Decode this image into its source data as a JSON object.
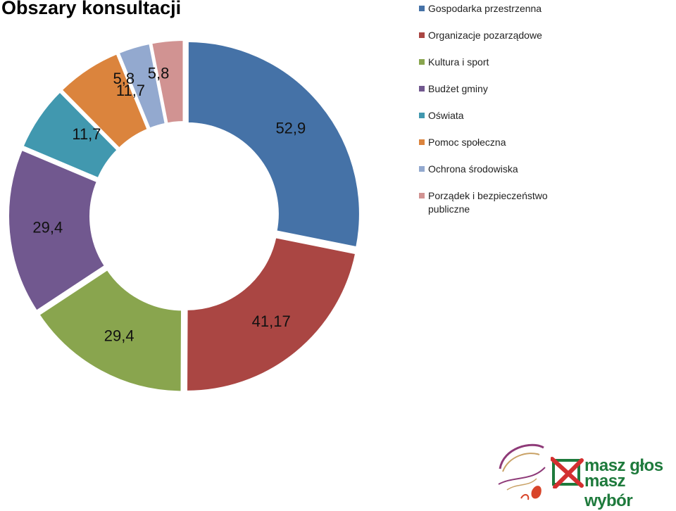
{
  "title": "Obszary konsultacji",
  "chart_data": {
    "type": "pie",
    "donut": true,
    "categories": [
      "Gospodarka przestrzenna",
      "Organizacje pozarządowe",
      "Kultura i sport",
      "Budżet gminy",
      "Oświata",
      "Pomoc społeczna",
      "Ochrona środowiska",
      "Porządek i bezpieczeństwo publiczne"
    ],
    "values": [
      52.9,
      41.17,
      29.4,
      29.4,
      11.7,
      11.7,
      5.8,
      5.8
    ],
    "labels": [
      "52,9",
      "41,17",
      "29,4",
      "29,4",
      "11,7",
      "11,7",
      "5,8",
      "5,8"
    ],
    "colors": [
      "#4572a7",
      "#aa4643",
      "#89a54e",
      "#71588f",
      "#4198af",
      "#db843d",
      "#93a9cf",
      "#d19392"
    ],
    "legend_position": "right"
  },
  "logos": {
    "masz_glos_line1": "masz głos",
    "masz_glos_line2": "masz wybór",
    "masz_glos_color": "#1e7a3c",
    "cross_color": "#d32f2f"
  }
}
